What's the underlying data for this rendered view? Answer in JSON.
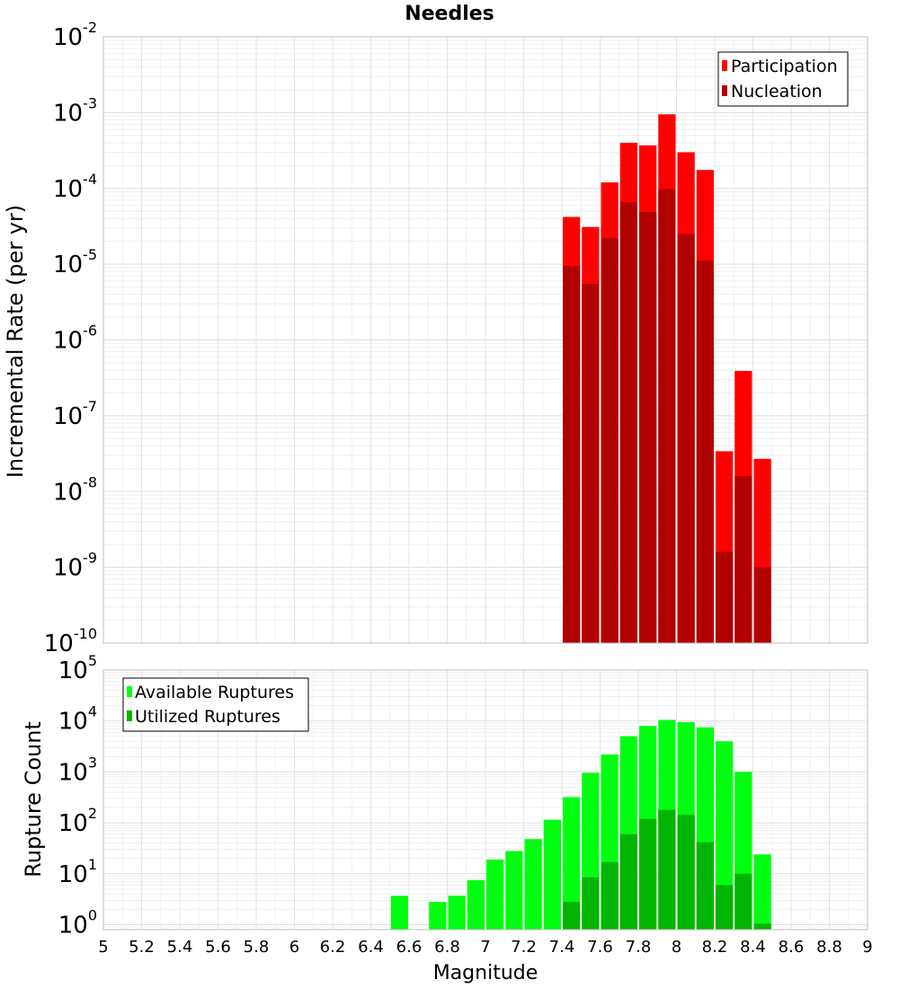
{
  "title": "Needles",
  "colors": {
    "participation": "#ff0000",
    "nucleation": "#b00000",
    "available": "#00ff11",
    "utilized": "#00b400",
    "grid": "#e6e6e6",
    "frame": "#bdbdbd"
  },
  "chart_data": [
    {
      "type": "bar",
      "title": "Needles",
      "xlabel": "",
      "ylabel": "Incremental Rate (per yr)",
      "yscale": "log",
      "xlim": [
        5,
        9
      ],
      "ylim": [
        1e-10,
        0.01
      ],
      "grid": true,
      "legend_position": "top-right",
      "bin_width": 0.1,
      "x": [
        7.45,
        7.55,
        7.65,
        7.75,
        7.85,
        7.95,
        8.05,
        8.15,
        8.25,
        8.35,
        8.45
      ],
      "series": [
        {
          "name": "Participation",
          "color": "#ff0000",
          "values": [
            4.2e-05,
            3.1e-05,
            0.00012,
            0.0004,
            0.00037,
            0.00095,
            0.0003,
            0.000175,
            3.4e-08,
            3.9e-07,
            2.7e-08
          ]
        },
        {
          "name": "Nucleation",
          "color": "#b00000",
          "values": [
            9.5e-06,
            5.5e-06,
            2.2e-05,
            6.6e-05,
            4.9e-05,
            9.8e-05,
            2.5e-05,
            1.12e-05,
            1.6e-09,
            1.6e-08,
            1e-09
          ]
        }
      ]
    },
    {
      "type": "bar",
      "xlabel": "Magnitude",
      "ylabel": "Rupture Count",
      "yscale": "log",
      "xlim": [
        5,
        9
      ],
      "ylim": [
        0.8,
        100000
      ],
      "grid": true,
      "legend_position": "top-left",
      "bin_width": 0.1,
      "x": [
        6.55,
        6.75,
        6.85,
        6.95,
        7.05,
        7.15,
        7.25,
        7.35,
        7.45,
        7.55,
        7.65,
        7.75,
        7.85,
        7.95,
        8.05,
        8.15,
        8.25,
        8.35,
        8.45
      ],
      "series": [
        {
          "name": "Available Ruptures",
          "color": "#00ff11",
          "values": [
            3.7,
            2.8,
            3.7,
            7.5,
            19,
            28,
            48,
            115,
            320,
            960,
            2200,
            5000,
            8000,
            10500,
            9500,
            7500,
            4000,
            1000,
            24
          ]
        },
        {
          "name": "Utilized Ruptures",
          "color": "#00b400",
          "values": [
            0,
            0,
            0,
            0,
            0,
            0,
            0,
            0,
            2.8,
            8.5,
            17,
            60,
            120,
            180,
            145,
            42,
            6,
            10,
            1.05
          ]
        }
      ]
    }
  ],
  "x_ticks": [
    "5",
    "5.2",
    "5.4",
    "5.6",
    "5.8",
    "6",
    "6.2",
    "6.4",
    "6.6",
    "6.8",
    "7",
    "7.2",
    "7.4",
    "7.6",
    "7.8",
    "8",
    "8.2",
    "8.4",
    "8.6",
    "8.8",
    "9"
  ],
  "top_y_ticks": [
    {
      "base": "10",
      "exp": "-10",
      "value": 1e-10
    },
    {
      "base": "10",
      "exp": "-9",
      "value": 1e-09
    },
    {
      "base": "10",
      "exp": "-8",
      "value": 1e-08
    },
    {
      "base": "10",
      "exp": "-7",
      "value": 1e-07
    },
    {
      "base": "10",
      "exp": "-6",
      "value": 1e-06
    },
    {
      "base": "10",
      "exp": "-5",
      "value": 1e-05
    },
    {
      "base": "10",
      "exp": "-4",
      "value": 0.0001
    },
    {
      "base": "10",
      "exp": "-3",
      "value": 0.001
    },
    {
      "base": "10",
      "exp": "-2",
      "value": 0.01
    }
  ],
  "bottom_y_ticks": [
    {
      "base": "10",
      "exp": "0",
      "value": 1
    },
    {
      "base": "10",
      "exp": "1",
      "value": 10
    },
    {
      "base": "10",
      "exp": "2",
      "value": 100
    },
    {
      "base": "10",
      "exp": "3",
      "value": 1000
    },
    {
      "base": "10",
      "exp": "4",
      "value": 10000
    },
    {
      "base": "10",
      "exp": "5",
      "value": 100000
    }
  ]
}
